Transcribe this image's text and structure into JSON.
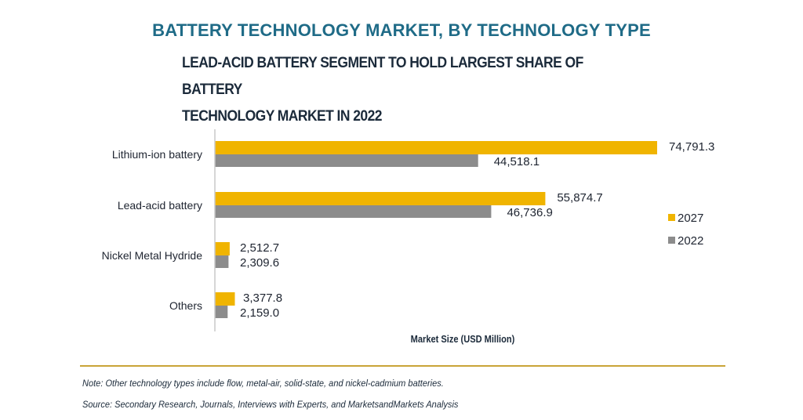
{
  "header": {
    "title": "BATTERY TECHNOLOGY MARKET, BY TECHNOLOGY TYPE",
    "subtitle_line1": "LEAD-ACID BATTERY SEGMENT TO HOLD LARGEST SHARE OF BATTERY",
    "subtitle_line2": "TECHNOLOGY MARKET IN 2022"
  },
  "chart_data": {
    "type": "bar",
    "orientation": "horizontal",
    "title": "BATTERY TECHNOLOGY MARKET, BY TECHNOLOGY TYPE",
    "subtitle": "LEAD-ACID BATTERY SEGMENT TO HOLD LARGEST SHARE OF BATTERY TECHNOLOGY MARKET IN 2022",
    "categories": [
      "Lithium-ion battery",
      "Lead-acid battery",
      "Nickel Metal Hydride",
      "Others"
    ],
    "series": [
      {
        "name": "2027",
        "color": "#f0b400",
        "values": [
          74791.3,
          55874.7,
          2512.7,
          3377.8
        ],
        "labels": [
          "74,791.3",
          "55,874.7",
          "2,512.7",
          "3,377.8"
        ]
      },
      {
        "name": "2022",
        "color": "#8c8c8c",
        "values": [
          44518.1,
          46736.9,
          2309.6,
          2159.0
        ],
        "labels": [
          "44,518.1",
          "46,736.9",
          "2,309.6",
          "2,159.0"
        ]
      }
    ],
    "xlabel": "Market Size (USD Million)",
    "ylabel": "",
    "xlim": [
      0,
      80000
    ],
    "grid": false,
    "legend_position": "right"
  },
  "footer": {
    "note": "Note: Other technology types include flow, metal-air, solid-state, and nickel-cadmium batteries.",
    "source": "Source: Secondary Research, Journals, Interviews with Experts, and MarketsandMarkets Analysis"
  },
  "colors": {
    "title": "#1f6b87",
    "divider": "#c9a437"
  }
}
